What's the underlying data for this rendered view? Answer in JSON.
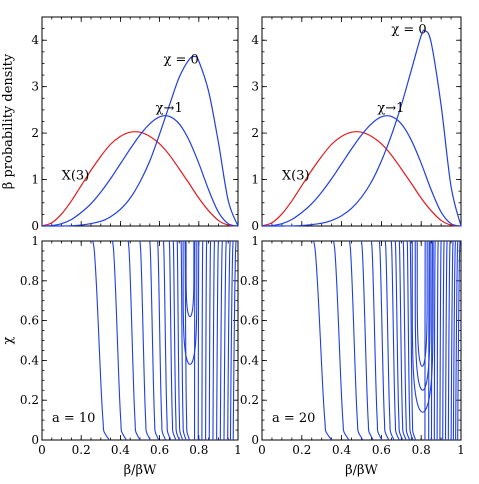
{
  "chart_data": [
    {
      "type": "line",
      "panel": "top-left",
      "ylabel": "β probability density",
      "xlim": [
        0,
        1
      ],
      "ylim": [
        0,
        4.5
      ],
      "xticks": [
        "0",
        "0.2",
        "0.4",
        "0.6",
        "0.8",
        "1"
      ],
      "yticks": [
        "0",
        "1",
        "2",
        "3",
        "4"
      ],
      "series": [
        {
          "color": "#e41a1c",
          "x": [
            0,
            0.05,
            0.1,
            0.15,
            0.2,
            0.25,
            0.3,
            0.35,
            0.4,
            0.45,
            0.5,
            0.55,
            0.6,
            0.65,
            0.7,
            0.75,
            0.8,
            0.85,
            0.9,
            0.95,
            1
          ],
          "y": [
            0,
            0.07,
            0.26,
            0.54,
            0.87,
            1.2,
            1.5,
            1.76,
            1.93,
            2.02,
            2.02,
            1.93,
            1.77,
            1.53,
            1.23,
            0.92,
            0.6,
            0.33,
            0.12,
            0.02,
            0
          ]
        },
        {
          "color": "#1f3fe0",
          "x": [
            0,
            0.05,
            0.1,
            0.15,
            0.2,
            0.25,
            0.3,
            0.35,
            0.4,
            0.45,
            0.5,
            0.55,
            0.6,
            0.65,
            0.7,
            0.75,
            0.8,
            0.85,
            0.9,
            0.95,
            1
          ],
          "y": [
            0,
            0.01,
            0.05,
            0.14,
            0.29,
            0.48,
            0.73,
            1.02,
            1.34,
            1.66,
            1.96,
            2.2,
            2.35,
            2.36,
            2.2,
            1.85,
            1.35,
            0.78,
            0.3,
            0.05,
            0
          ]
        },
        {
          "color": "#1f3fe0",
          "x": [
            0,
            0.1,
            0.2,
            0.3,
            0.35,
            0.4,
            0.45,
            0.5,
            0.55,
            0.6,
            0.65,
            0.7,
            0.75,
            0.78,
            0.8,
            0.85,
            0.9,
            0.95,
            1
          ],
          "y": [
            0,
            0,
            0.02,
            0.1,
            0.2,
            0.36,
            0.6,
            0.95,
            1.4,
            1.98,
            2.6,
            3.2,
            3.58,
            3.65,
            3.55,
            2.9,
            1.8,
            0.55,
            0
          ]
        }
      ],
      "annotations": [
        {
          "text": "X(3)",
          "x": 0.1,
          "y": 1.0
        },
        {
          "text": "χ→1",
          "x": 0.58,
          "y": 2.45
        },
        {
          "text": "χ = 0",
          "x": 0.62,
          "y": 3.5
        }
      ]
    },
    {
      "type": "line",
      "panel": "top-right",
      "xlim": [
        0,
        1
      ],
      "ylim": [
        0,
        4.5
      ],
      "xticks": [
        "0",
        "0.2",
        "0.4",
        "0.6",
        "0.8",
        "1"
      ],
      "yticks": [
        "0",
        "1",
        "2",
        "3",
        "4"
      ],
      "series": [
        {
          "color": "#e41a1c",
          "x": [
            0,
            0.05,
            0.1,
            0.15,
            0.2,
            0.25,
            0.3,
            0.35,
            0.4,
            0.45,
            0.5,
            0.55,
            0.6,
            0.65,
            0.7,
            0.75,
            0.8,
            0.85,
            0.9,
            0.95,
            1
          ],
          "y": [
            0,
            0.07,
            0.26,
            0.54,
            0.87,
            1.2,
            1.5,
            1.76,
            1.93,
            2.02,
            2.02,
            1.93,
            1.77,
            1.53,
            1.23,
            0.92,
            0.6,
            0.33,
            0.12,
            0.02,
            0
          ]
        },
        {
          "color": "#1f3fe0",
          "x": [
            0,
            0.05,
            0.1,
            0.15,
            0.2,
            0.25,
            0.3,
            0.35,
            0.4,
            0.45,
            0.5,
            0.55,
            0.6,
            0.65,
            0.7,
            0.75,
            0.8,
            0.85,
            0.9,
            0.95,
            1
          ],
          "y": [
            0,
            0.01,
            0.05,
            0.14,
            0.29,
            0.48,
            0.73,
            1.02,
            1.34,
            1.66,
            1.96,
            2.2,
            2.35,
            2.36,
            2.2,
            1.85,
            1.35,
            0.78,
            0.3,
            0.05,
            0
          ]
        },
        {
          "color": "#1f3fe0",
          "x": [
            0,
            0.1,
            0.2,
            0.3,
            0.35,
            0.4,
            0.45,
            0.5,
            0.55,
            0.6,
            0.65,
            0.7,
            0.75,
            0.8,
            0.82,
            0.85,
            0.9,
            0.95,
            1
          ],
          "y": [
            0,
            0,
            0.01,
            0.06,
            0.12,
            0.22,
            0.38,
            0.62,
            0.95,
            1.4,
            1.95,
            2.6,
            3.35,
            4.1,
            4.2,
            3.95,
            2.6,
            0.85,
            0
          ]
        }
      ],
      "annotations": [
        {
          "text": "X(3)",
          "x": 0.1,
          "y": 1.0
        },
        {
          "text": "χ→1",
          "x": 0.58,
          "y": 2.45
        },
        {
          "text": "χ = 0",
          "x": 0.65,
          "y": 4.15
        }
      ]
    },
    {
      "type": "line",
      "panel": "bottom-left",
      "xlabel": "β/βW",
      "ylabel": "χ",
      "xlim": [
        0,
        1
      ],
      "ylim": [
        0,
        1
      ],
      "xticks": [
        "0",
        "0.2",
        "0.4",
        "0.6",
        "0.8",
        "1"
      ],
      "yticks": [
        "0",
        "0.2",
        "0.4",
        "0.6",
        "0.8",
        "1"
      ],
      "text": "a = 10",
      "contour_center": 0.75,
      "curve_tops": [
        0.26,
        0.36,
        0.44,
        0.5,
        0.55,
        0.59,
        0.62,
        0.65,
        0.67,
        0.69,
        0.71,
        0.73
      ],
      "curve_bottoms": [
        0.78,
        0.8,
        0.82,
        0.84,
        0.86,
        0.88,
        0.9,
        0.92,
        0.94,
        0.96,
        0.975,
        0.99
      ],
      "nested_loops": [
        {
          "left": 0.72,
          "right": 0.79,
          "min_chi": 0.38
        },
        {
          "left": 0.735,
          "right": 0.775,
          "min_chi": 0.62
        }
      ],
      "color": "#1f3fe0"
    },
    {
      "type": "line",
      "panel": "bottom-right",
      "xlabel": "β/βW",
      "xlim": [
        0,
        1
      ],
      "ylim": [
        0,
        1
      ],
      "xticks": [
        "0",
        "0.2",
        "0.4",
        "0.6",
        "0.8",
        "1"
      ],
      "yticks": [
        "0",
        "0.2",
        "0.4",
        "0.6",
        "0.8",
        "1"
      ],
      "text": "a = 20",
      "contour_center": 0.8,
      "curve_tops": [
        0.26,
        0.36,
        0.44,
        0.5,
        0.55,
        0.59,
        0.62,
        0.65,
        0.67,
        0.69,
        0.71,
        0.73,
        0.745
      ],
      "curve_bottoms": [
        0.82,
        0.84,
        0.855,
        0.87,
        0.885,
        0.9,
        0.915,
        0.93,
        0.945,
        0.96,
        0.972,
        0.984,
        0.995
      ],
      "nested_loops": [
        {
          "left": 0.755,
          "right": 0.86,
          "min_chi": 0.14
        },
        {
          "left": 0.77,
          "right": 0.845,
          "min_chi": 0.25
        },
        {
          "left": 0.78,
          "right": 0.83,
          "min_chi": 0.37
        }
      ],
      "color": "#1f3fe0"
    }
  ]
}
